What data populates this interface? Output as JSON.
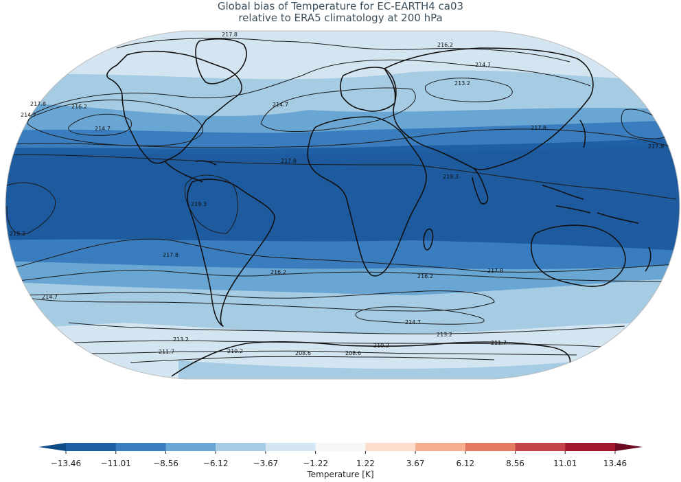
{
  "title": {
    "line1": "Global bias of Temperature for EC-EARTH4 ca03",
    "line2": "relative to ERA5 climatology at 200 hPa"
  },
  "colorbar": {
    "label": "Temperature [K]",
    "ticks": [
      "−13.46",
      "−11.01",
      "−8.56",
      "−6.12",
      "−3.67",
      "−1.22",
      "1.22",
      "3.67",
      "6.12",
      "8.56",
      "11.01",
      "13.46"
    ],
    "colors": [
      "#0d4b87",
      "#1f5fa5",
      "#3a7dbe",
      "#6aa6d3",
      "#a6cce4",
      "#d3e5f1",
      "#f7f7f7",
      "#fcdccb",
      "#f5b08f",
      "#e27b62",
      "#c6424b",
      "#a31730",
      "#6d0a22"
    ]
  },
  "contours": [
    {
      "label": "217.8"
    },
    {
      "label": "216.2"
    },
    {
      "label": "214.7"
    },
    {
      "label": "213.2"
    },
    {
      "label": "214.7"
    },
    {
      "label": "217.8"
    },
    {
      "label": "216.2"
    },
    {
      "label": "214.7"
    },
    {
      "label": "217.8"
    },
    {
      "label": "217.8"
    },
    {
      "label": "219.3"
    },
    {
      "label": "219.3"
    },
    {
      "label": "219.3"
    },
    {
      "label": "217.8"
    },
    {
      "label": "216.2"
    },
    {
      "label": "217.8"
    },
    {
      "label": "216.2"
    },
    {
      "label": "214.7"
    },
    {
      "label": "214.7"
    },
    {
      "label": "213.2"
    },
    {
      "label": "213.2"
    },
    {
      "label": "211.7"
    },
    {
      "label": "210.2"
    },
    {
      "label": "208.6"
    },
    {
      "label": "208.6"
    },
    {
      "label": "210.2"
    },
    {
      "label": "211.7"
    },
    {
      "label": "217.8"
    },
    {
      "label": "214.7"
    }
  ]
}
